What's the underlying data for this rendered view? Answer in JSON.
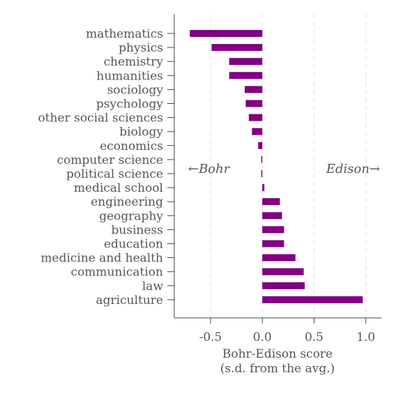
{
  "chart_data": {
    "type": "bar",
    "orientation": "horizontal",
    "categories": [
      "mathematics",
      "physics",
      "chemistry",
      "humanities",
      "sociology",
      "psychology",
      "other social sciences",
      "biology",
      "economics",
      "computer science",
      "political science",
      "medical school",
      "engineering",
      "geography",
      "business",
      "education",
      "medicine and health",
      "communication",
      "law",
      "agriculture"
    ],
    "values": [
      -0.7,
      -0.49,
      -0.32,
      -0.32,
      -0.17,
      -0.16,
      -0.13,
      -0.1,
      -0.04,
      -0.01,
      -0.01,
      0.02,
      0.17,
      0.19,
      0.21,
      0.21,
      0.32,
      0.4,
      0.41,
      0.97
    ],
    "bar_color": "#800080",
    "xlabel_line1": "Bohr-Edison score",
    "xlabel_line2": "(s.d. from the avg.)",
    "xticks": [
      -0.5,
      0.0,
      0.5,
      1.0
    ],
    "xtick_labels": [
      "-0.5",
      "0.0",
      "0.5",
      "1.0"
    ],
    "xlim": [
      -0.85,
      1.15
    ],
    "gridlines": [
      -0.5,
      0.0,
      0.5,
      1.0
    ],
    "annotation_left": "←Bohr",
    "annotation_right": "Edison→"
  }
}
